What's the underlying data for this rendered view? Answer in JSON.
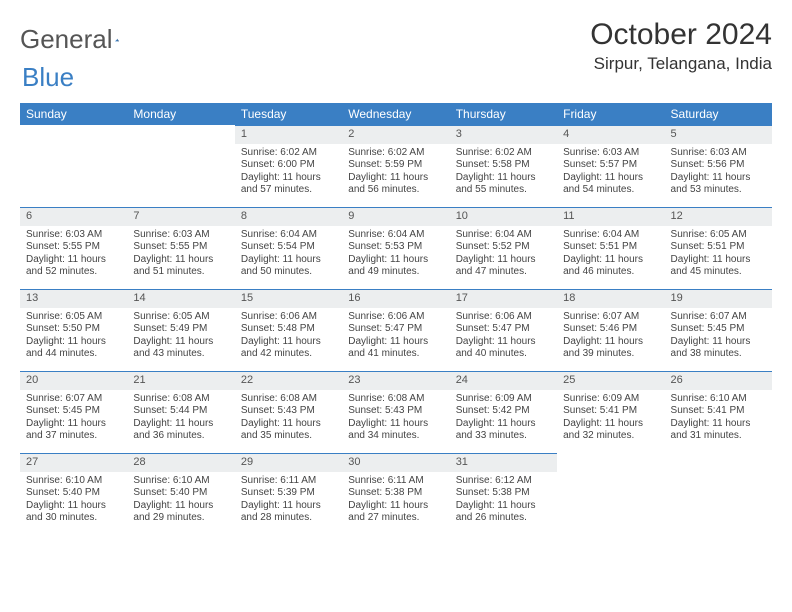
{
  "logo": {
    "left": "General",
    "right": "Blue"
  },
  "title": "October 2024",
  "location": "Sirpur, Telangana, India",
  "colors": {
    "header_bg": "#3a7fc4",
    "header_text": "#ffffff",
    "daynum_bg": "#eceeef",
    "daynum_border": "#3a7fc4",
    "body_text": "#444444",
    "page_bg": "#ffffff"
  },
  "weekdays": [
    "Sunday",
    "Monday",
    "Tuesday",
    "Wednesday",
    "Thursday",
    "Friday",
    "Saturday"
  ],
  "weeks": [
    [
      null,
      null,
      {
        "n": "1",
        "sr": "6:02 AM",
        "ss": "6:00 PM",
        "dl": "11 hours and 57 minutes."
      },
      {
        "n": "2",
        "sr": "6:02 AM",
        "ss": "5:59 PM",
        "dl": "11 hours and 56 minutes."
      },
      {
        "n": "3",
        "sr": "6:02 AM",
        "ss": "5:58 PM",
        "dl": "11 hours and 55 minutes."
      },
      {
        "n": "4",
        "sr": "6:03 AM",
        "ss": "5:57 PM",
        "dl": "11 hours and 54 minutes."
      },
      {
        "n": "5",
        "sr": "6:03 AM",
        "ss": "5:56 PM",
        "dl": "11 hours and 53 minutes."
      }
    ],
    [
      {
        "n": "6",
        "sr": "6:03 AM",
        "ss": "5:55 PM",
        "dl": "11 hours and 52 minutes."
      },
      {
        "n": "7",
        "sr": "6:03 AM",
        "ss": "5:55 PM",
        "dl": "11 hours and 51 minutes."
      },
      {
        "n": "8",
        "sr": "6:04 AM",
        "ss": "5:54 PM",
        "dl": "11 hours and 50 minutes."
      },
      {
        "n": "9",
        "sr": "6:04 AM",
        "ss": "5:53 PM",
        "dl": "11 hours and 49 minutes."
      },
      {
        "n": "10",
        "sr": "6:04 AM",
        "ss": "5:52 PM",
        "dl": "11 hours and 47 minutes."
      },
      {
        "n": "11",
        "sr": "6:04 AM",
        "ss": "5:51 PM",
        "dl": "11 hours and 46 minutes."
      },
      {
        "n": "12",
        "sr": "6:05 AM",
        "ss": "5:51 PM",
        "dl": "11 hours and 45 minutes."
      }
    ],
    [
      {
        "n": "13",
        "sr": "6:05 AM",
        "ss": "5:50 PM",
        "dl": "11 hours and 44 minutes."
      },
      {
        "n": "14",
        "sr": "6:05 AM",
        "ss": "5:49 PM",
        "dl": "11 hours and 43 minutes."
      },
      {
        "n": "15",
        "sr": "6:06 AM",
        "ss": "5:48 PM",
        "dl": "11 hours and 42 minutes."
      },
      {
        "n": "16",
        "sr": "6:06 AM",
        "ss": "5:47 PM",
        "dl": "11 hours and 41 minutes."
      },
      {
        "n": "17",
        "sr": "6:06 AM",
        "ss": "5:47 PM",
        "dl": "11 hours and 40 minutes."
      },
      {
        "n": "18",
        "sr": "6:07 AM",
        "ss": "5:46 PM",
        "dl": "11 hours and 39 minutes."
      },
      {
        "n": "19",
        "sr": "6:07 AM",
        "ss": "5:45 PM",
        "dl": "11 hours and 38 minutes."
      }
    ],
    [
      {
        "n": "20",
        "sr": "6:07 AM",
        "ss": "5:45 PM",
        "dl": "11 hours and 37 minutes."
      },
      {
        "n": "21",
        "sr": "6:08 AM",
        "ss": "5:44 PM",
        "dl": "11 hours and 36 minutes."
      },
      {
        "n": "22",
        "sr": "6:08 AM",
        "ss": "5:43 PM",
        "dl": "11 hours and 35 minutes."
      },
      {
        "n": "23",
        "sr": "6:08 AM",
        "ss": "5:43 PM",
        "dl": "11 hours and 34 minutes."
      },
      {
        "n": "24",
        "sr": "6:09 AM",
        "ss": "5:42 PM",
        "dl": "11 hours and 33 minutes."
      },
      {
        "n": "25",
        "sr": "6:09 AM",
        "ss": "5:41 PM",
        "dl": "11 hours and 32 minutes."
      },
      {
        "n": "26",
        "sr": "6:10 AM",
        "ss": "5:41 PM",
        "dl": "11 hours and 31 minutes."
      }
    ],
    [
      {
        "n": "27",
        "sr": "6:10 AM",
        "ss": "5:40 PM",
        "dl": "11 hours and 30 minutes."
      },
      {
        "n": "28",
        "sr": "6:10 AM",
        "ss": "5:40 PM",
        "dl": "11 hours and 29 minutes."
      },
      {
        "n": "29",
        "sr": "6:11 AM",
        "ss": "5:39 PM",
        "dl": "11 hours and 28 minutes."
      },
      {
        "n": "30",
        "sr": "6:11 AM",
        "ss": "5:38 PM",
        "dl": "11 hours and 27 minutes."
      },
      {
        "n": "31",
        "sr": "6:12 AM",
        "ss": "5:38 PM",
        "dl": "11 hours and 26 minutes."
      },
      null,
      null
    ]
  ],
  "labels": {
    "sunrise": "Sunrise: ",
    "sunset": "Sunset: ",
    "daylight": "Daylight: "
  }
}
